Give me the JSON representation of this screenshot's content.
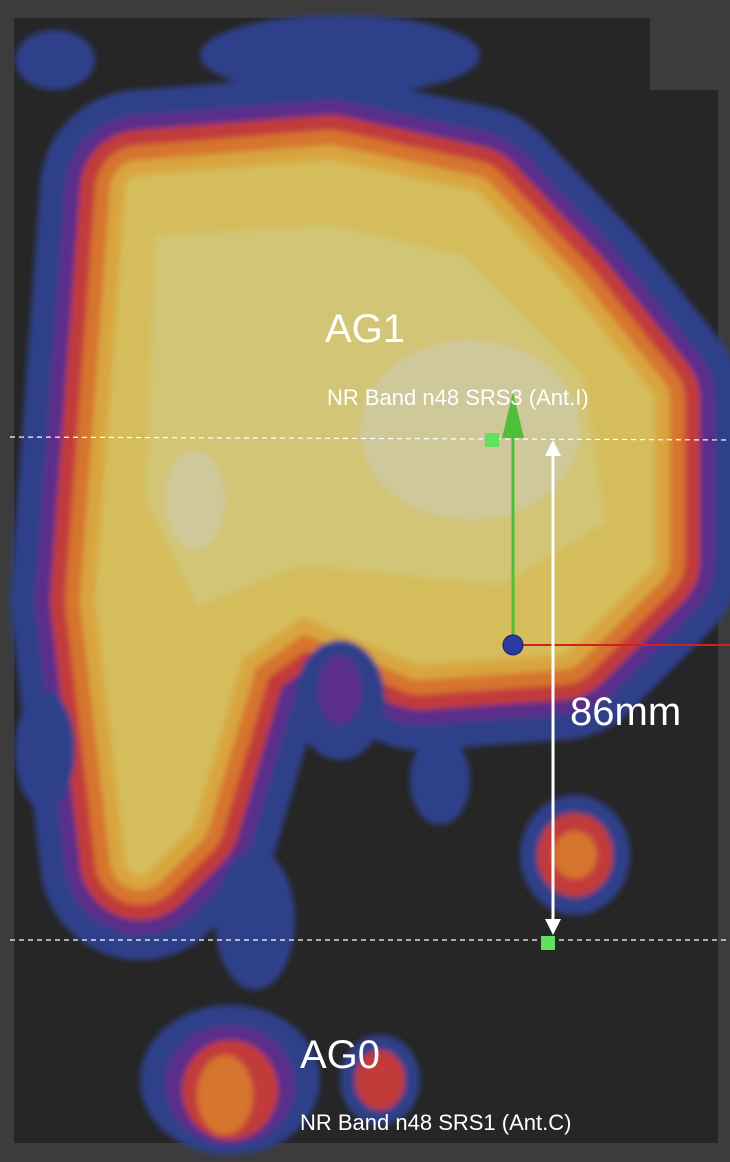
{
  "top_antenna": {
    "name": "AG1",
    "label": "NR Band n48 SRS3 (Ant.I)"
  },
  "distance": {
    "label": "86mm"
  },
  "bottom_antenna": {
    "name": "AG0",
    "label": "NR Band n48 SRS1 (Ant.C)"
  }
}
